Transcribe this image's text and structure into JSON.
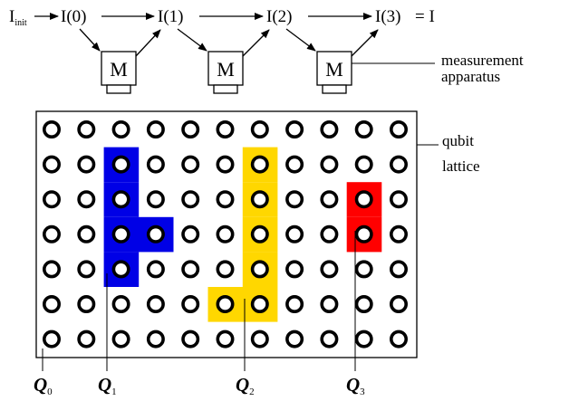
{
  "chain": {
    "init_main": "I",
    "init_sub": "init",
    "states": [
      "I(0)",
      "I(1)",
      "I(2)",
      "I(3)"
    ],
    "final_eq": "= I",
    "apparatus_label": "M"
  },
  "labels": {
    "measurement_line1": "measurement",
    "measurement_line2": "apparatus",
    "lattice_line1": "qubit",
    "lattice_line2": "lattice"
  },
  "lattice": {
    "rows": 7,
    "cols": 11,
    "regions": [
      {
        "name": "Q1",
        "color": "#0000e6",
        "cells": [
          [
            1,
            2
          ],
          [
            2,
            2
          ],
          [
            3,
            2
          ],
          [
            3,
            3
          ],
          [
            4,
            2
          ]
        ]
      },
      {
        "name": "Q2",
        "color": "#ffd700",
        "cells": [
          [
            1,
            6
          ],
          [
            2,
            6
          ],
          [
            3,
            6
          ],
          [
            4,
            6
          ],
          [
            5,
            5
          ],
          [
            5,
            6
          ]
        ]
      },
      {
        "name": "Q3",
        "color": "#ff0000",
        "cells": [
          [
            2,
            9
          ],
          [
            3,
            9
          ]
        ]
      }
    ]
  },
  "qubit_labels": [
    {
      "main": "Q",
      "sub": "0"
    },
    {
      "main": "Q",
      "sub": "1"
    },
    {
      "main": "Q",
      "sub": "2"
    },
    {
      "main": "Q",
      "sub": "3"
    }
  ]
}
